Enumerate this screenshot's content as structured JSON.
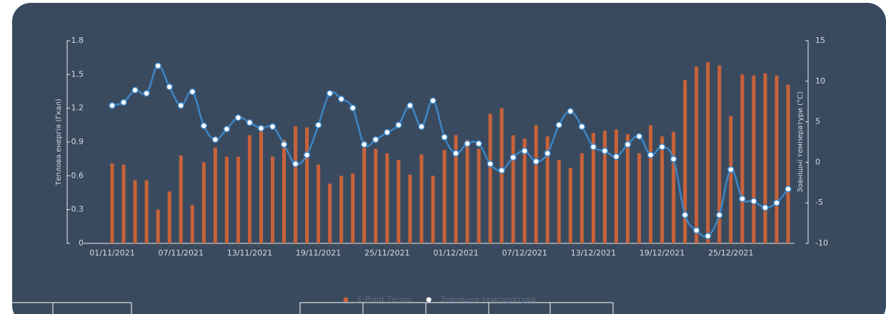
{
  "chart_data": {
    "type": "bar_line",
    "y_label": "Теплова енергія (Гкал)",
    "y2_label": "Зовнішні температури (°C)",
    "categories": [
      "01/11/2021",
      null,
      null,
      null,
      null,
      null,
      "07/11/2021",
      null,
      null,
      null,
      null,
      null,
      "13/11/2021",
      null,
      null,
      null,
      null,
      null,
      "19/11/2021",
      null,
      null,
      null,
      null,
      null,
      "25/11/2021",
      null,
      null,
      null,
      null,
      null,
      "01/12/2021",
      null,
      null,
      null,
      null,
      null,
      "07/12/2021",
      null,
      null,
      null,
      null,
      null,
      "13/12/2021",
      null,
      null,
      null,
      null,
      null,
      "19/12/2021",
      null,
      null,
      null,
      null,
      null,
      "25/12/2021",
      null,
      null,
      null,
      null,
      null
    ],
    "series": [
      {
        "name": "E-Point Тепло",
        "color": "#c8623a",
        "kind": "bar",
        "values": [
          0.71,
          0.7,
          0.56,
          0.56,
          0.3,
          0.46,
          0.78,
          0.34,
          0.72,
          0.85,
          0.77,
          0.77,
          0.96,
          1.01,
          0.77,
          0.92,
          1.04,
          1.03,
          0.7,
          0.53,
          0.6,
          0.62,
          0.89,
          0.84,
          0.8,
          0.74,
          0.61,
          0.79,
          0.6,
          0.83,
          0.96,
          0.92,
          0.84,
          1.15,
          1.2,
          0.96,
          0.93,
          1.05,
          0.95,
          0.74,
          0.67,
          0.8,
          0.98,
          1.0,
          1.01,
          0.97,
          0.8,
          1.05,
          0.95,
          0.99,
          1.45,
          1.57,
          1.61,
          1.58,
          1.13,
          1.5,
          1.49,
          1.51,
          1.49,
          1.41
        ]
      },
      {
        "name": "Зовнішня температура",
        "color": "#3d86c6",
        "kind": "line",
        "axis": "y2",
        "values": [
          7.0,
          7.4,
          8.9,
          8.5,
          11.9,
          9.3,
          7.0,
          8.7,
          4.5,
          2.8,
          4.1,
          5.5,
          4.9,
          4.2,
          4.4,
          2.2,
          -0.2,
          0.9,
          4.6,
          8.5,
          7.8,
          6.7,
          2.2,
          2.8,
          3.7,
          4.6,
          7.0,
          4.4,
          7.6,
          3.1,
          1.1,
          2.3,
          2.3,
          -0.2,
          -1.0,
          0.6,
          1.4,
          0.1,
          1.1,
          4.6,
          6.3,
          4.4,
          1.9,
          1.4,
          0.7,
          2.2,
          3.2,
          0.9,
          1.9,
          0.4,
          -6.5,
          -8.4,
          -9.1,
          -6.5,
          -0.9,
          -4.5,
          -4.8,
          -5.6,
          -5.0,
          -3.3
        ]
      }
    ],
    "ylim": [
      0,
      1.8
    ],
    "yticks": [
      0,
      0.3,
      0.6,
      0.9,
      1.2,
      1.5,
      1.8
    ],
    "y2lim": [
      -10,
      15
    ],
    "y2ticks": [
      -10,
      -5,
      0,
      5,
      10,
      15
    ],
    "legend": "bottom"
  }
}
